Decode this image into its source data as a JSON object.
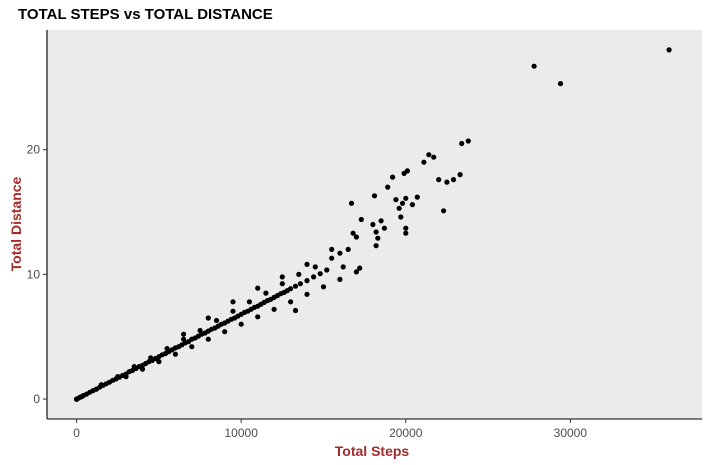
{
  "chart_data": {
    "type": "scatter",
    "title": "TOTAL STEPS vs TOTAL DISTANCE",
    "xlabel": "Total Steps",
    "ylabel": "Total Distance",
    "xlim": [
      -1800,
      38000
    ],
    "ylim": [
      -1.6,
      29.6
    ],
    "x_ticks": [
      0,
      10000,
      20000,
      30000
    ],
    "y_ticks": [
      0,
      10,
      20
    ],
    "x_tick_labels": [
      "0",
      "10000",
      "20000",
      "30000"
    ],
    "y_tick_labels": [
      "0",
      "10",
      "20"
    ],
    "grid": false,
    "legend": "none",
    "colors": {
      "panel": "#ebebeb",
      "point": "#000000",
      "axis_title": "#a52a2a",
      "tick_label": "#4d4d4d",
      "axis_line": "#000000"
    },
    "points": [
      [
        0,
        0
      ],
      [
        0,
        0
      ],
      [
        0,
        0
      ],
      [
        100,
        0.07
      ],
      [
        200,
        0.14
      ],
      [
        300,
        0.2
      ],
      [
        400,
        0.28
      ],
      [
        600,
        0.4
      ],
      [
        800,
        0.55
      ],
      [
        1000,
        0.68
      ],
      [
        1200,
        0.8
      ],
      [
        1400,
        0.95
      ],
      [
        1600,
        1.1
      ],
      [
        1800,
        1.22
      ],
      [
        2000,
        1.35
      ],
      [
        2200,
        1.5
      ],
      [
        2400,
        1.62
      ],
      [
        2600,
        1.75
      ],
      [
        2800,
        1.9
      ],
      [
        3000,
        2.0
      ],
      [
        3200,
        2.2
      ],
      [
        3400,
        2.3
      ],
      [
        3600,
        2.45
      ],
      [
        3800,
        2.6
      ],
      [
        4000,
        2.7
      ],
      [
        4200,
        2.85
      ],
      [
        4400,
        3.0
      ],
      [
        4600,
        3.1
      ],
      [
        4800,
        3.25
      ],
      [
        5000,
        3.4
      ],
      [
        5200,
        3.55
      ],
      [
        5400,
        3.65
      ],
      [
        5600,
        3.8
      ],
      [
        5800,
        3.95
      ],
      [
        6000,
        4.1
      ],
      [
        6200,
        4.2
      ],
      [
        6400,
        4.35
      ],
      [
        6600,
        4.5
      ],
      [
        6800,
        4.6
      ],
      [
        7000,
        4.8
      ],
      [
        7200,
        4.9
      ],
      [
        7400,
        5.05
      ],
      [
        7600,
        5.2
      ],
      [
        7800,
        5.3
      ],
      [
        8000,
        5.45
      ],
      [
        8200,
        5.6
      ],
      [
        8400,
        5.7
      ],
      [
        8600,
        5.85
      ],
      [
        8800,
        6.0
      ],
      [
        9000,
        6.1
      ],
      [
        9200,
        6.25
      ],
      [
        9400,
        6.4
      ],
      [
        9600,
        6.5
      ],
      [
        9800,
        6.65
      ],
      [
        10000,
        6.8
      ],
      [
        10200,
        6.95
      ],
      [
        10400,
        7.05
      ],
      [
        10600,
        7.2
      ],
      [
        10800,
        7.35
      ],
      [
        11000,
        7.45
      ],
      [
        11200,
        7.6
      ],
      [
        11400,
        7.75
      ],
      [
        11600,
        7.9
      ],
      [
        11800,
        8.0
      ],
      [
        12000,
        8.15
      ],
      [
        12200,
        8.3
      ],
      [
        12400,
        8.45
      ],
      [
        12600,
        8.55
      ],
      [
        12800,
        8.7
      ],
      [
        13000,
        8.85
      ],
      [
        13300,
        9.05
      ],
      [
        13600,
        9.25
      ],
      [
        14000,
        9.5
      ],
      [
        14400,
        9.8
      ],
      [
        14800,
        10.05
      ],
      [
        15200,
        10.35
      ],
      [
        1500,
        1.15
      ],
      [
        2500,
        1.8
      ],
      [
        3500,
        2.6
      ],
      [
        4500,
        3.3
      ],
      [
        5500,
        4.05
      ],
      [
        6500,
        4.8
      ],
      [
        7500,
        5.5
      ],
      [
        8500,
        6.3
      ],
      [
        9500,
        7.05
      ],
      [
        10500,
        7.8
      ],
      [
        11500,
        8.5
      ],
      [
        12500,
        9.25
      ],
      [
        13500,
        10.0
      ],
      [
        14500,
        10.6
      ],
      [
        15500,
        11.3
      ],
      [
        16000,
        11.7
      ],
      [
        16500,
        12.0
      ],
      [
        3000,
        1.8
      ],
      [
        4000,
        2.4
      ],
      [
        5000,
        3.0
      ],
      [
        6000,
        3.6
      ],
      [
        7000,
        4.2
      ],
      [
        8000,
        4.8
      ],
      [
        9000,
        5.4
      ],
      [
        10000,
        6.0
      ],
      [
        11000,
        6.6
      ],
      [
        12000,
        7.2
      ],
      [
        13000,
        7.8
      ],
      [
        14000,
        8.4
      ],
      [
        15000,
        9.0
      ],
      [
        16000,
        9.6
      ],
      [
        17000,
        10.2
      ],
      [
        17200,
        10.5
      ],
      [
        6500,
        5.2
      ],
      [
        8000,
        6.5
      ],
      [
        9500,
        7.8
      ],
      [
        11000,
        8.9
      ],
      [
        12500,
        9.8
      ],
      [
        14000,
        10.8
      ],
      [
        15500,
        12.0
      ],
      [
        13300,
        7.1
      ],
      [
        16200,
        10.6
      ],
      [
        16800,
        13.3
      ],
      [
        17000,
        13.0
      ],
      [
        16700,
        15.7
      ],
      [
        17300,
        14.4
      ],
      [
        18000,
        14.0
      ],
      [
        18200,
        13.4
      ],
      [
        18300,
        12.9
      ],
      [
        18200,
        12.3
      ],
      [
        18500,
        14.3
      ],
      [
        18700,
        13.7
      ],
      [
        18100,
        16.3
      ],
      [
        18900,
        17.0
      ],
      [
        19200,
        17.8
      ],
      [
        19400,
        16.0
      ],
      [
        19600,
        15.3
      ],
      [
        19800,
        15.7
      ],
      [
        19700,
        14.6
      ],
      [
        20000,
        16.1
      ],
      [
        20000,
        13.3
      ],
      [
        20000,
        13.7
      ],
      [
        20400,
        15.6
      ],
      [
        20700,
        16.2
      ],
      [
        20100,
        18.3
      ],
      [
        19900,
        18.1
      ],
      [
        21100,
        19.0
      ],
      [
        21400,
        19.6
      ],
      [
        21700,
        19.4
      ],
      [
        22000,
        17.6
      ],
      [
        22300,
        15.1
      ],
      [
        22500,
        17.4
      ],
      [
        22900,
        17.6
      ],
      [
        23300,
        18.0
      ],
      [
        23400,
        20.5
      ],
      [
        23800,
        20.7
      ],
      [
        27800,
        26.7
      ],
      [
        29400,
        25.3
      ],
      [
        36000,
        28.0
      ]
    ]
  }
}
